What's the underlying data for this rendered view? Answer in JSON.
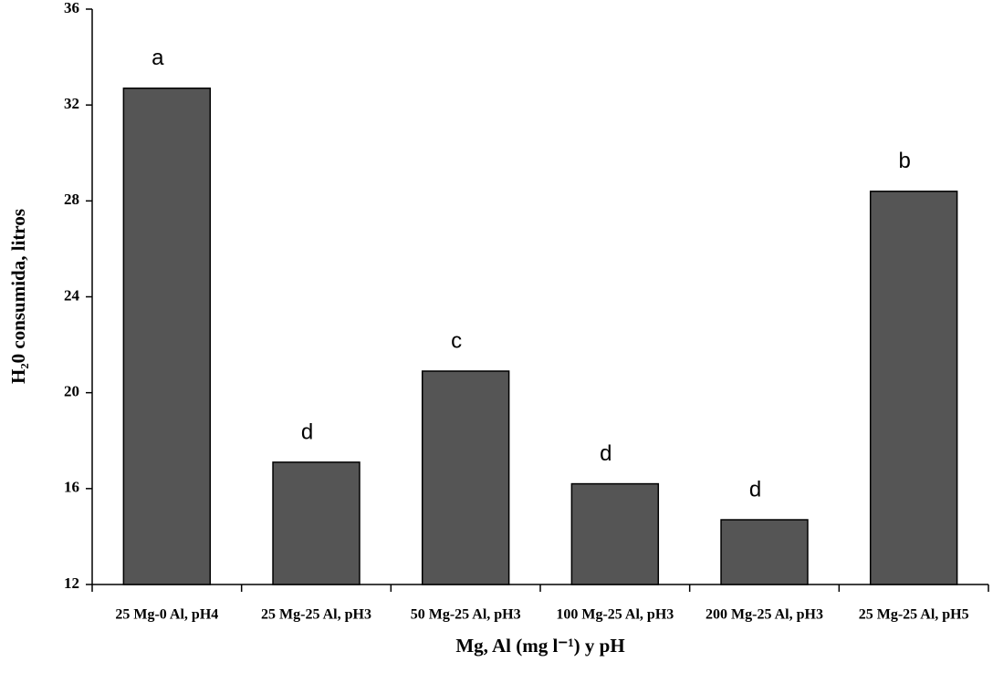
{
  "chart_data": {
    "type": "bar",
    "y_label": "H₂0 consumida, litros",
    "x_label": "Mg, Al (mg l⁻¹) y pH",
    "categories": [
      "25 Mg-0 Al, pH4",
      "25 Mg-25 Al, pH3",
      "50 Mg-25 Al, pH3",
      "100 Mg-25 Al, pH3",
      "200 Mg-25 Al, pH3",
      "25 Mg-25 Al, pH5"
    ],
    "values": [
      32.7,
      17.1,
      20.9,
      16.2,
      14.7,
      28.4
    ],
    "annotations": [
      "a",
      "d",
      "c",
      "d",
      "d",
      "b"
    ],
    "color": "#555555",
    "ylim": [
      12,
      36
    ],
    "yticks": [
      12,
      16,
      20,
      24,
      28,
      32,
      36
    ],
    "grid": false
  }
}
